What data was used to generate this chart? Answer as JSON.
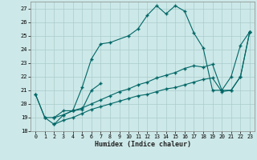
{
  "xlabel": "Humidex (Indice chaleur)",
  "xlim": [
    -0.5,
    23.5
  ],
  "ylim": [
    18,
    27.5
  ],
  "yticks": [
    18,
    19,
    20,
    21,
    22,
    23,
    24,
    25,
    26,
    27
  ],
  "xticks": [
    0,
    1,
    2,
    3,
    4,
    5,
    6,
    7,
    8,
    9,
    10,
    11,
    12,
    13,
    14,
    15,
    16,
    17,
    18,
    19,
    20,
    21,
    22,
    23
  ],
  "background_color": "#cde8e8",
  "grid_color": "#aacccc",
  "line_color": "#006666",
  "line0_x": [
    0,
    1,
    2,
    3,
    4,
    5,
    6,
    7,
    8,
    10,
    11,
    12,
    13,
    14,
    15,
    16,
    17,
    18,
    19,
    20,
    21,
    22,
    23
  ],
  "line0_y": [
    20.7,
    19.0,
    19.0,
    19.5,
    19.5,
    21.2,
    23.3,
    24.4,
    24.5,
    25.0,
    25.5,
    26.5,
    27.2,
    26.6,
    27.2,
    26.8,
    25.2,
    24.1,
    21.0,
    21.0,
    22.0,
    24.3,
    25.3
  ],
  "line1_x": [
    0,
    1,
    2,
    3,
    4,
    5,
    6,
    7
  ],
  "line1_y": [
    20.7,
    19.0,
    18.5,
    19.2,
    19.5,
    19.6,
    21.0,
    21.5
  ],
  "line2_x": [
    2,
    3,
    4,
    5,
    6,
    7,
    8,
    9,
    10,
    11,
    12,
    13,
    14,
    15,
    16,
    17,
    18,
    19,
    20,
    21,
    22,
    23
  ],
  "line2_y": [
    19.0,
    19.2,
    19.5,
    19.7,
    20.0,
    20.3,
    20.6,
    20.9,
    21.1,
    21.4,
    21.6,
    21.9,
    22.1,
    22.3,
    22.6,
    22.8,
    22.7,
    22.9,
    21.0,
    21.0,
    22.0,
    25.3
  ],
  "line3_x": [
    2,
    3,
    4,
    5,
    6,
    7,
    8,
    9,
    10,
    11,
    12,
    13,
    14,
    15,
    16,
    17,
    18,
    19,
    20,
    21,
    22,
    23
  ],
  "line3_y": [
    18.5,
    18.8,
    19.0,
    19.3,
    19.6,
    19.8,
    20.0,
    20.2,
    20.4,
    20.6,
    20.7,
    20.9,
    21.1,
    21.2,
    21.4,
    21.6,
    21.8,
    21.9,
    20.9,
    21.0,
    22.0,
    25.3
  ]
}
